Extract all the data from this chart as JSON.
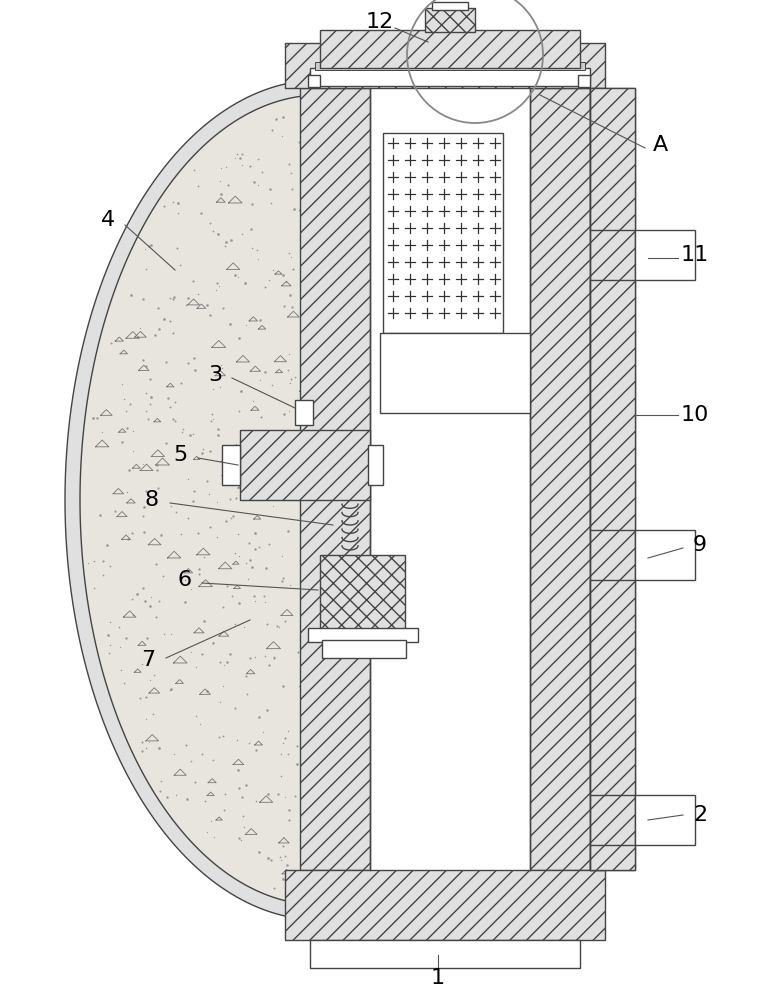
{
  "bg_color": "#ffffff",
  "lc": "#444444",
  "lw_main": 1.0,
  "hatch_lw": 0.5,
  "label_fontsize": 16,
  "label_color": "#000000",
  "leader_color": "#555555",
  "leader_lw": 0.8
}
